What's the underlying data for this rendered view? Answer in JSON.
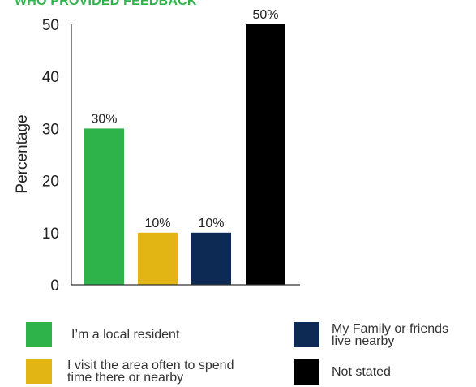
{
  "chart_data": {
    "type": "bar",
    "title": "WHO PROVIDED FEEDBACK",
    "xlabel": "",
    "ylabel": "Percentage",
    "ylim": [
      0,
      50
    ],
    "yticks": [
      0,
      10,
      20,
      30,
      40,
      50
    ],
    "grid": false,
    "legend_position": "bottom",
    "categories": [
      "I'm a local resident",
      "I visit the area often to spend time there or nearby",
      "My Family or friends live nearby",
      "Not stated"
    ],
    "values": [
      30,
      10,
      10,
      50
    ],
    "data_labels": [
      "30%",
      "10%",
      "10%",
      "50%"
    ],
    "colors": [
      "#2db34a",
      "#e3b514",
      "#0d2a55",
      "#000000"
    ]
  },
  "legend": {
    "items": [
      {
        "label": "I’m a local resident",
        "color": "#2db34a"
      },
      {
        "label": "I visit the area often to spend\ntime there or nearby",
        "color": "#e3b514"
      },
      {
        "label": "My Family or friends\nlive nearby",
        "color": "#0d2a55"
      },
      {
        "label": "Not stated",
        "color": "#000000"
      }
    ]
  }
}
